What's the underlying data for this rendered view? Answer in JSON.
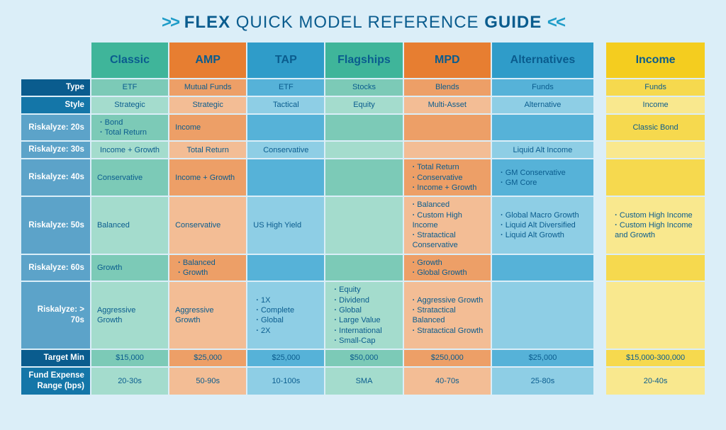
{
  "title": {
    "pre_arrows": ">>",
    "bold1": "FLEX",
    "mid": " QUICK MODEL REFERENCE ",
    "bold2": "GUIDE",
    "post_arrows": "<<"
  },
  "colWidths": {
    "label": 95,
    "a": 106,
    "b": 106,
    "c": 106,
    "d": 106,
    "e": 120,
    "f": 140,
    "gap": 14,
    "g": 136
  },
  "columns": {
    "a": {
      "name": "Classic",
      "headClass": "teal-head",
      "cellA": "teal",
      "cellB": "tealL"
    },
    "b": {
      "name": "AMP",
      "headClass": "orange-head",
      "cellA": "orange",
      "cellB": "orangeL"
    },
    "c": {
      "name": "TAP",
      "headClass": "blue-head",
      "cellA": "blue",
      "cellB": "blueL"
    },
    "d": {
      "name": "Flagships",
      "headClass": "teal-head",
      "cellA": "teal",
      "cellB": "tealL"
    },
    "e": {
      "name": "MPD",
      "headClass": "orange-head",
      "cellA": "orange",
      "cellB": "orangeL"
    },
    "f": {
      "name": "Alternatives",
      "headClass": "blue-head",
      "cellA": "blue",
      "cellB": "blueL"
    },
    "g": {
      "name": "Income",
      "headClass": "yellow-head",
      "cellA": "yellow",
      "cellB": "yellowL"
    }
  },
  "rows": [
    {
      "label": "Type",
      "labelClass": "deep",
      "useA": true,
      "centered": true,
      "cells": {
        "a": "ETF",
        "b": "Mutual Funds",
        "c": "ETF",
        "d": "Stocks",
        "e": "Blends",
        "f": "Funds",
        "g": "Funds"
      }
    },
    {
      "label": "Style",
      "labelClass": "darker",
      "useA": false,
      "centered": true,
      "cells": {
        "a": "Strategic",
        "b": "Strategic",
        "c": "Tactical",
        "d": "Equity",
        "e": "Multi-Asset",
        "f": "Alternative",
        "g": "Income"
      }
    },
    {
      "label": "Riskalyze: 20s",
      "labelClass": "",
      "useA": true,
      "cells": {
        "a": [
          "Bond",
          "Total Return"
        ],
        "b": "Income",
        "c": "",
        "d": "",
        "e": "",
        "f": "",
        "g": "Classic Bond"
      },
      "gCentered": true
    },
    {
      "label": "Riskalyze: 30s",
      "labelClass": "",
      "useA": false,
      "cells": {
        "a": "Income + Growth",
        "b": "Total Return",
        "c": "Conservative",
        "d": "",
        "e": "",
        "f": "Liquid Alt Income",
        "g": ""
      },
      "centered": true
    },
    {
      "label": "Riskalyze: 40s",
      "labelClass": "",
      "useA": true,
      "cells": {
        "a": "Conservative",
        "b": "Income + Growth",
        "c": "",
        "d": "",
        "e": [
          "Total Return",
          "Conservative",
          "Income + Growth"
        ],
        "f": [
          "GM Conservative",
          "GM Core"
        ],
        "g": ""
      }
    },
    {
      "label": "Riskalyze: 50s",
      "labelClass": "",
      "useA": false,
      "cells": {
        "a": "Balanced",
        "b": "Conservative",
        "c": "US High Yield",
        "d": "",
        "e": [
          "Balanced",
          "Custom High Income",
          "Stratactical Conservative"
        ],
        "f": [
          "Global Macro Growth",
          "Liquid Alt Diversified",
          "Liquid Alt Growth"
        ],
        "g": [
          "Custom High Income",
          "Custom High Income and Growth"
        ]
      }
    },
    {
      "label": "Riskalyze: 60s",
      "labelClass": "",
      "useA": true,
      "cells": {
        "a": "Growth",
        "b": [
          "Balanced",
          "Growth"
        ],
        "c": "",
        "d": "",
        "e": [
          "Growth",
          "Global Growth"
        ],
        "f": "",
        "g": ""
      }
    },
    {
      "label": "Riskalyze: > 70s",
      "labelClass": "",
      "useA": false,
      "cells": {
        "a": "Aggressive Growth",
        "b": "Aggressive Growth",
        "c": [
          "1X",
          "Complete",
          "Global",
          "2X"
        ],
        "d": [
          "Equity",
          "Dividend",
          "Global",
          "Large Value",
          "International",
          "Small-Cap"
        ],
        "e": [
          "Aggressive Growth",
          "Stratactical Balanced",
          "Stratactical Growth"
        ],
        "f": "",
        "g": ""
      }
    },
    {
      "label": "Target Min",
      "labelClass": "deep",
      "useA": true,
      "centered": true,
      "cells": {
        "a": "$15,000",
        "b": "$25,000",
        "c": "$25,000",
        "d": "$50,000",
        "e": "$250,000",
        "f": "$25,000",
        "g": "$15,000-300,000"
      }
    },
    {
      "label": "Fund Expense Range (bps)",
      "labelClass": "darker",
      "useA": false,
      "centered": true,
      "cells": {
        "a": "20-30s",
        "b": "50-90s",
        "c": "10-100s",
        "d": "SMA",
        "e": "40-70s",
        "f": "25-80s",
        "g": "20-40s"
      }
    }
  ]
}
